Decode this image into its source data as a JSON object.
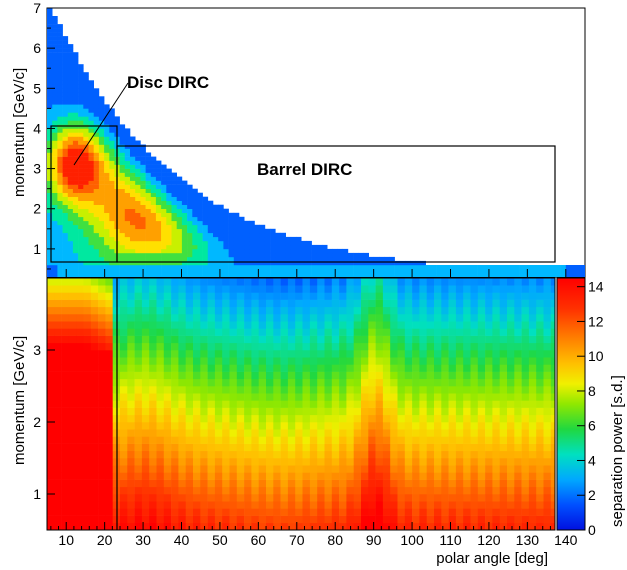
{
  "chart_data": [
    {
      "type": "heatmap",
      "panel": "top",
      "ylabel": "momentum [GeV/c]",
      "xlim": [
        5,
        145
      ],
      "ylim": [
        0.3,
        7
      ],
      "yticks": [
        "1",
        "2",
        "3",
        "4",
        "5",
        "6",
        "7"
      ],
      "grid": false,
      "colors": [
        "#0010e0",
        "#0060ff",
        "#00b8ff",
        "#00e8a0",
        "#40e040",
        "#c8f000",
        "#ffe000",
        "#ffa000",
        "#ff6000",
        "#ff2000"
      ],
      "annotations": [
        {
          "text": "Disc DIRC",
          "region_polar_angle": [
            5,
            22
          ],
          "region_momentum": [
            0.6,
            4.0
          ],
          "arrow_to": [
            12,
            3.0
          ]
        },
        {
          "text": "Barrel DIRC",
          "region_polar_angle": [
            22,
            140
          ],
          "region_momentum": [
            0.6,
            3.5
          ]
        }
      ]
    },
    {
      "type": "heatmap",
      "panel": "bottom",
      "xlabel": "polar angle [deg]",
      "ylabel": "momentum [GeV/c]",
      "xlim": [
        5,
        145
      ],
      "ylim": [
        0.5,
        4.0
      ],
      "xticks": [
        "10",
        "20",
        "30",
        "40",
        "50",
        "60",
        "70",
        "80",
        "90",
        "100",
        "110",
        "120",
        "130",
        "140"
      ],
      "yticks": [
        "1",
        "2",
        "3"
      ],
      "grid": false,
      "divider_polar_angle": 22,
      "colorbar": {
        "label": "separation power [s.d.]",
        "range": [
          0,
          14.5
        ],
        "ticks": [
          "0",
          "2",
          "4",
          "6",
          "8",
          "10",
          "12",
          "14"
        ]
      }
    }
  ]
}
